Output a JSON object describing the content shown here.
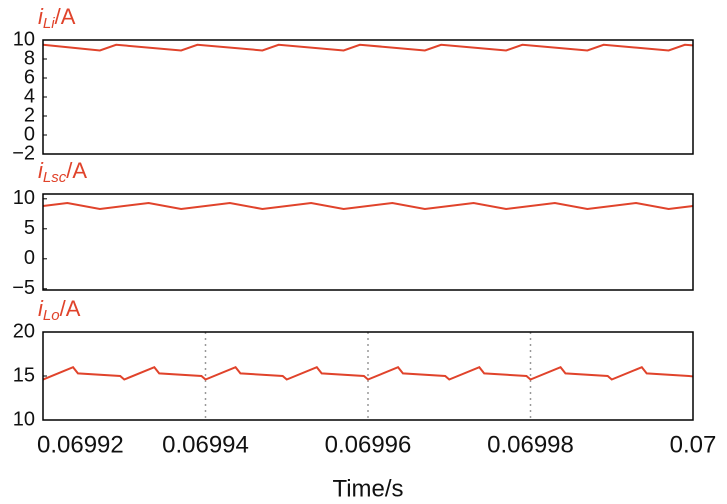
{
  "chart_data": [
    {
      "type": "line",
      "title": {
        "symbol": "i",
        "subscript": "Li",
        "unit": "/A"
      },
      "xlim": [
        0.06992,
        0.07
      ],
      "ylim": [
        -2,
        10
      ],
      "yticks": [
        10,
        8,
        6,
        4,
        2,
        0,
        {
          "value": -2,
          "label": "−2"
        }
      ],
      "series": [
        {
          "color": "#e0432b",
          "x": [
            0.06992,
            0.069927,
            0.069929,
            0.069937,
            0.069939,
            0.069947,
            0.069949,
            0.069957,
            0.069959,
            0.069967,
            0.069969,
            0.069977,
            0.069979,
            0.069987,
            0.069989,
            0.069997,
            0.069999,
            0.07
          ],
          "values": [
            9.5,
            8.9,
            9.5,
            8.9,
            9.5,
            8.9,
            9.5,
            8.9,
            9.5,
            8.9,
            9.5,
            8.9,
            9.5,
            8.9,
            9.5,
            8.9,
            9.5,
            9.43
          ]
        }
      ]
    },
    {
      "type": "line",
      "title": {
        "symbol": "i",
        "subscript": "Lsc",
        "unit": "/A"
      },
      "xlim": [
        0.06992,
        0.07
      ],
      "ylim": [
        -5.2,
        10.8
      ],
      "yticks": [
        10,
        5,
        0,
        {
          "value": -5,
          "label": "−5"
        }
      ],
      "series": [
        {
          "color": "#e0432b",
          "x": [
            0.06992,
            0.069923,
            0.069927,
            0.069933,
            0.069937,
            0.069943,
            0.069947,
            0.069953,
            0.069957,
            0.069963,
            0.069967,
            0.069973,
            0.069977,
            0.069983,
            0.069987,
            0.069993,
            0.069997,
            0.07
          ],
          "values": [
            8.8,
            9.3,
            8.3,
            9.3,
            8.3,
            9.3,
            8.3,
            9.3,
            8.3,
            9.3,
            8.3,
            9.3,
            8.3,
            9.3,
            8.3,
            9.3,
            8.3,
            8.8
          ]
        }
      ]
    },
    {
      "type": "line",
      "title": {
        "symbol": "i",
        "subscript": "Lo",
        "unit": "/A"
      },
      "xlabel": "Time/s",
      "xlim": [
        0.06992,
        0.07
      ],
      "ylim": [
        10,
        20
      ],
      "xticks": [
        0.06992,
        0.06994,
        0.06996,
        0.06998,
        0.07
      ],
      "yticks": [
        20,
        15,
        10
      ],
      "xgrid": true,
      "series": [
        {
          "color": "#e0432b",
          "x": [
            0.06992,
            0.0699237,
            0.0699243,
            0.0699295,
            0.06993,
            0.0699337,
            0.0699343,
            0.0699395,
            0.06994,
            0.0699437,
            0.0699443,
            0.0699495,
            0.06995,
            0.0699537,
            0.0699543,
            0.0699595,
            0.06996,
            0.0699637,
            0.0699643,
            0.0699695,
            0.06997,
            0.0699737,
            0.0699743,
            0.0699795,
            0.06998,
            0.0699837,
            0.0699843,
            0.0699895,
            0.06999,
            0.0699937,
            0.0699943,
            0.0699995,
            0.07
          ],
          "values": [
            14.6,
            16.0,
            15.3,
            15.0,
            14.6,
            16.0,
            15.3,
            15.0,
            14.6,
            16.0,
            15.3,
            15.0,
            14.6,
            16.0,
            15.3,
            15.0,
            14.6,
            16.0,
            15.3,
            15.0,
            14.6,
            16.0,
            15.3,
            15.0,
            14.6,
            16.0,
            15.3,
            15.0,
            14.6,
            16.0,
            15.3,
            15.0,
            14.95
          ]
        }
      ]
    }
  ]
}
